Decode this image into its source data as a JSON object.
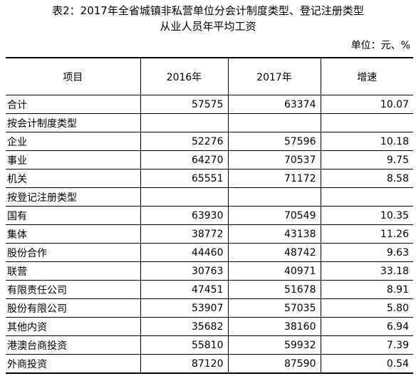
{
  "title_line1": "表2：2017年全省城镇非私营单位分会计制度类型、登记注册类型",
  "title_line2": "从业人员年平均工资",
  "unit": "单位：元、%",
  "headers": [
    "项目",
    "2016年",
    "2017年",
    "增速"
  ],
  "rows": [
    {
      "name": "合计",
      "y2016": "57575",
      "y2017": "63374",
      "growth": "10.07"
    },
    {
      "name": "按会计制度类型",
      "y2016": "",
      "y2017": "",
      "growth": ""
    },
    {
      "name": "企业",
      "y2016": "52276",
      "y2017": "57596",
      "growth": "10.18"
    },
    {
      "name": "事业",
      "y2016": "64270",
      "y2017": "70537",
      "growth": "9.75"
    },
    {
      "name": "机关",
      "y2016": "65551",
      "y2017": "71172",
      "growth": "8.58"
    },
    {
      "name": "按登记注册类型",
      "y2016": "",
      "y2017": "",
      "growth": ""
    },
    {
      "name": "国有",
      "y2016": "63930",
      "y2017": "70549",
      "growth": "10.35"
    },
    {
      "name": "集体",
      "y2016": "38772",
      "y2017": "43138",
      "growth": "11.26"
    },
    {
      "name": "股份合作",
      "y2016": "44460",
      "y2017": "48742",
      "growth": "9.63"
    },
    {
      "name": "联营",
      "y2016": "30763",
      "y2017": "40971",
      "growth": "33.18"
    },
    {
      "name": "有限责任公司",
      "y2016": "47451",
      "y2017": "51678",
      "growth": "8.91"
    },
    {
      "name": "股份有限公司",
      "y2016": "53907",
      "y2017": "57035",
      "growth": "5.80"
    },
    {
      "name": "其他内资",
      "y2016": "35682",
      "y2017": "38160",
      "growth": "6.94"
    },
    {
      "name": "港澳台商投资",
      "y2016": "55810",
      "y2017": "59932",
      "growth": "7.39"
    },
    {
      "name": "外商投资",
      "y2016": "87120",
      "y2017": "87590",
      "growth": "0.54"
    }
  ]
}
